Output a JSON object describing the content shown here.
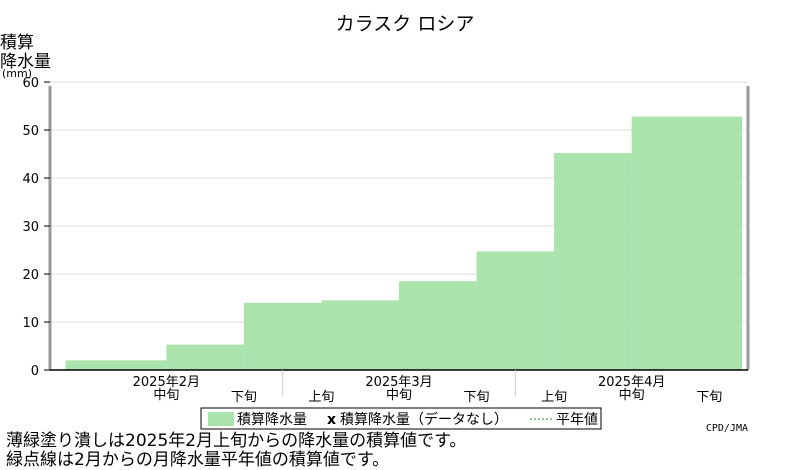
{
  "colors": {
    "fill": "#ABE3AC",
    "frame": "#999999",
    "grid": "#dddddd"
  },
  "chart_data": {
    "type": "area",
    "title": "カラスク ロシア",
    "ylabel_lines": [
      "積算",
      "降水量"
    ],
    "yunit": "(mm)",
    "ylim": [
      0,
      60
    ],
    "yticks": [
      0,
      10,
      20,
      30,
      40,
      50,
      60
    ],
    "grid": true,
    "categories": [
      "中旬",
      "下旬",
      "上旬",
      "中旬",
      "下旬",
      "上旬",
      "中旬",
      "下旬"
    ],
    "month_labels": [
      "2025年2月",
      "2025年3月",
      "2025年4月"
    ],
    "series": [
      {
        "name": "積算降水量",
        "values": [
          2,
          5.3,
          14,
          14.5,
          18.5,
          24.7,
          45.2,
          52.8
        ]
      }
    ],
    "normal_series": {
      "name": "積算降水量（データなし）",
      "values": []
    },
    "legend": {
      "items": [
        "積算降水量",
        "積算降水量（データなし）",
        "平年値"
      ],
      "placement": "bottom-center",
      "missing_marker": "x"
    }
  },
  "credit": "CPD/JMA",
  "notes": [
    "薄緑塗り潰しは2025年2月上旬からの降水量の積算値です。",
    "緑点線は2月からの月降水量平年値の積算値です。"
  ]
}
